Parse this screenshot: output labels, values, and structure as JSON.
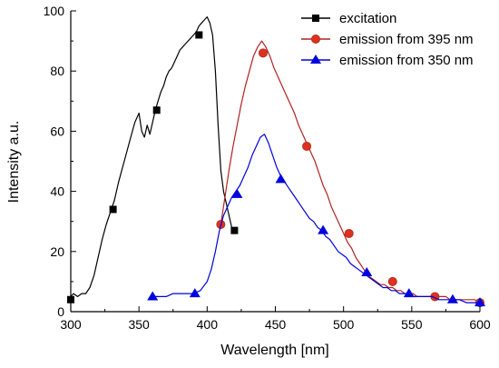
{
  "chart_data": {
    "type": "line",
    "xlabel": "Wavelength [nm]",
    "ylabel": "Intensity a.u.",
    "xlim": [
      300,
      600
    ],
    "ylim": [
      0,
      100
    ],
    "xticks": [
      "300",
      "350",
      "400",
      "450",
      "500",
      "550",
      "600"
    ],
    "yticks": [
      "0",
      "20",
      "40",
      "60",
      "80",
      "100"
    ],
    "grid": false,
    "legend_position": "top-right",
    "series": [
      {
        "name": "excitation",
        "color": "#000000",
        "marker": "square",
        "x": [
          300,
          302,
          305,
          308,
          311,
          314,
          317,
          320,
          323,
          326,
          329,
          332,
          335,
          338,
          341,
          344,
          347,
          350,
          352,
          354,
          356,
          358,
          360,
          362,
          364,
          366,
          368,
          370,
          372,
          374,
          376,
          378,
          380,
          382,
          384,
          386,
          388,
          390,
          392,
          394,
          396,
          398,
          400,
          402,
          404,
          406,
          408,
          410,
          412,
          414,
          416,
          418,
          420
        ],
        "y": [
          5,
          6,
          5,
          6,
          6,
          8,
          12,
          18,
          24,
          29,
          33,
          37,
          43,
          48,
          53,
          58,
          63,
          66,
          60,
          58,
          62,
          59,
          63,
          67,
          70,
          73,
          75,
          78,
          80,
          81,
          83,
          85,
          87,
          88,
          89,
          90,
          91,
          92,
          93,
          95,
          96,
          97,
          98,
          96,
          92,
          80,
          62,
          47,
          40,
          36,
          32,
          28,
          27
        ],
        "marker_x": [
          300,
          331,
          363,
          394,
          420
        ],
        "marker_y": [
          4,
          34,
          67,
          92,
          27
        ]
      },
      {
        "name": "emission from 395 nm",
        "color": "#b22222",
        "marker": "circle",
        "x": [
          410,
          413,
          416,
          419,
          422,
          425,
          428,
          431,
          434,
          437,
          440,
          443,
          446,
          449,
          452,
          455,
          458,
          461,
          464,
          467,
          470,
          473,
          476,
          479,
          482,
          485,
          488,
          491,
          494,
          497,
          500,
          503,
          506,
          509,
          512,
          515,
          518,
          521,
          524,
          527,
          530,
          533,
          536,
          539,
          542,
          545,
          548,
          551,
          554,
          557,
          560,
          563,
          566,
          569,
          572,
          575,
          578,
          581,
          584,
          587,
          590,
          593,
          596,
          600
        ],
        "y": [
          29,
          38,
          47,
          55,
          62,
          69,
          75,
          80,
          85,
          88,
          90,
          88,
          85,
          81,
          78,
          75,
          72,
          69,
          66,
          62,
          59,
          56,
          53,
          50,
          46,
          42,
          39,
          35,
          32,
          29,
          26,
          23,
          21,
          18,
          16,
          14,
          12,
          11,
          10,
          9,
          9,
          8,
          8,
          7,
          7,
          6,
          6,
          6,
          5,
          5,
          5,
          5,
          5,
          5,
          5,
          5,
          4,
          4,
          4,
          4,
          4,
          4,
          4,
          3
        ],
        "marker_x": [
          410,
          441,
          473,
          504,
          536,
          567,
          600
        ],
        "marker_y": [
          29,
          86,
          55,
          26,
          10,
          5,
          3
        ]
      },
      {
        "name": "emission from 350 nm",
        "color": "#0000dd",
        "marker": "triangle",
        "x": [
          360,
          365,
          370,
          375,
          380,
          385,
          390,
          395,
          400,
          403,
          406,
          409,
          412,
          415,
          418,
          421,
          424,
          427,
          430,
          433,
          436,
          439,
          442,
          445,
          448,
          451,
          454,
          457,
          460,
          463,
          466,
          469,
          472,
          475,
          478,
          481,
          484,
          487,
          490,
          493,
          496,
          499,
          502,
          505,
          508,
          511,
          514,
          517,
          520,
          523,
          526,
          529,
          532,
          535,
          538,
          541,
          544,
          547,
          550,
          555,
          560,
          565,
          570,
          575,
          580,
          585,
          590,
          595,
          600
        ],
        "y": [
          5,
          5,
          5,
          6,
          6,
          6,
          6,
          7,
          10,
          14,
          20,
          27,
          32,
          35,
          38,
          40,
          42,
          45,
          48,
          52,
          55,
          58,
          59,
          56,
          52,
          48,
          45,
          43,
          41,
          39,
          37,
          35,
          33,
          31,
          30,
          28,
          27,
          25,
          24,
          22,
          20,
          19,
          18,
          16,
          15,
          14,
          13,
          12,
          11,
          10,
          9,
          8,
          8,
          7,
          7,
          6,
          6,
          6,
          5,
          5,
          5,
          5,
          4,
          4,
          4,
          4,
          3,
          3,
          3
        ],
        "marker_x": [
          360,
          391,
          422,
          454,
          485,
          517,
          548,
          580,
          600
        ],
        "marker_y": [
          5,
          6,
          39,
          44,
          27,
          13,
          6,
          4,
          3
        ]
      }
    ]
  }
}
